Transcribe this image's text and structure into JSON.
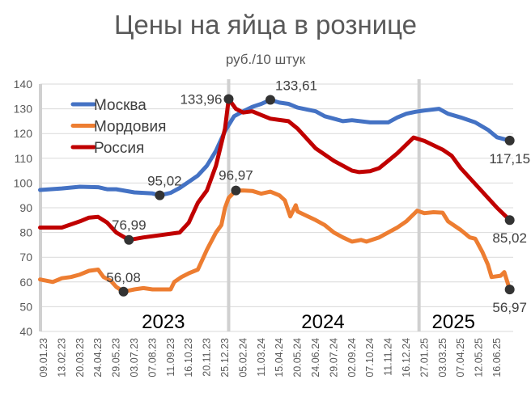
{
  "chart_data": {
    "type": "line",
    "title": "Цены на яйца в рознице",
    "subtitle": "руб./10 штук",
    "xlabel": "",
    "ylabel": "",
    "ylim": [
      40,
      140
    ],
    "yticks": [
      40,
      50,
      60,
      70,
      80,
      90,
      100,
      110,
      120,
      130,
      140
    ],
    "grid": true,
    "legend_position": "top-left",
    "x_tick_labels": [
      "09.01.23",
      "13.02.23",
      "20.03.23",
      "24.04.23",
      "29.05.23",
      "03.07.23",
      "07.08.23",
      "11.09.23",
      "16.10.23",
      "20.11.23",
      "25.12.23",
      "05.02.24",
      "11.03.24",
      "15.04.24",
      "20.05.24",
      "24.06.24",
      "29.07.24",
      "02.09.24",
      "07.10.24",
      "11.11.24",
      "16.12.24",
      "27.01.25",
      "03.03.25",
      "07.04.25",
      "12.05.25",
      "16.06.25"
    ],
    "x_units": "position in tick-label index (fractional)",
    "year_labels": [
      {
        "text": "2023",
        "x": 6.6
      },
      {
        "text": "2024",
        "x": 15.4
      },
      {
        "text": "2025",
        "x": 22.6
      }
    ],
    "year_dividers": [
      10.2,
      20.7
    ],
    "series": [
      {
        "name": "Москва",
        "color": "#4472C4",
        "points": [
          [
            -0.2,
            97.2
          ],
          [
            1,
            97.8
          ],
          [
            2,
            98.5
          ],
          [
            3,
            98.3
          ],
          [
            3.5,
            97.5
          ],
          [
            4,
            97.5
          ],
          [
            5,
            96.2
          ],
          [
            6,
            95.8
          ],
          [
            6.4,
            95.02
          ],
          [
            7,
            96
          ],
          [
            7.5,
            98
          ],
          [
            8,
            100.5
          ],
          [
            8.5,
            103
          ],
          [
            9,
            107
          ],
          [
            9.5,
            113
          ],
          [
            10,
            121
          ],
          [
            10.5,
            127
          ],
          [
            11,
            129
          ],
          [
            11.5,
            130.8
          ],
          [
            12,
            132
          ],
          [
            12.5,
            133.61
          ],
          [
            13,
            132.5
          ],
          [
            13.5,
            132
          ],
          [
            14,
            130.5
          ],
          [
            15,
            129
          ],
          [
            15.5,
            127
          ],
          [
            16,
            126
          ],
          [
            16.5,
            125
          ],
          [
            17,
            125.4
          ],
          [
            18,
            124.5
          ],
          [
            19,
            124.5
          ],
          [
            19.5,
            126.5
          ],
          [
            20,
            128
          ],
          [
            20.5,
            128.8
          ],
          [
            21,
            129.3
          ],
          [
            21.8,
            130
          ],
          [
            22.3,
            128
          ],
          [
            23,
            126.5
          ],
          [
            23.8,
            124.5
          ],
          [
            24.5,
            121.5
          ],
          [
            25,
            118.5
          ],
          [
            25.7,
            117.15
          ]
        ]
      },
      {
        "name": "Мордовия",
        "color": "#ED7D31",
        "points": [
          [
            -0.2,
            61
          ],
          [
            0.5,
            60
          ],
          [
            1,
            61.5
          ],
          [
            1.5,
            62
          ],
          [
            2,
            63
          ],
          [
            2.5,
            64.5
          ],
          [
            3,
            65
          ],
          [
            3.3,
            62
          ],
          [
            3.7,
            60.5
          ],
          [
            4,
            58
          ],
          [
            4.4,
            56.08
          ],
          [
            5,
            57
          ],
          [
            5.5,
            57.5
          ],
          [
            6,
            57
          ],
          [
            7,
            57
          ],
          [
            7.2,
            60
          ],
          [
            7.6,
            62
          ],
          [
            8,
            63.5
          ],
          [
            8.5,
            65
          ],
          [
            9,
            73
          ],
          [
            9.5,
            80
          ],
          [
            9.8,
            83
          ],
          [
            10,
            90
          ],
          [
            10.2,
            94
          ],
          [
            10.6,
            96.97
          ],
          [
            11,
            97
          ],
          [
            11.5,
            96.8
          ],
          [
            12,
            95.7
          ],
          [
            12.5,
            96.5
          ],
          [
            13,
            95
          ],
          [
            13.3,
            93
          ],
          [
            13.6,
            86.5
          ],
          [
            13.9,
            91
          ],
          [
            14,
            88.5
          ],
          [
            15,
            85
          ],
          [
            15.5,
            83
          ],
          [
            16,
            80
          ],
          [
            16.5,
            78
          ],
          [
            17,
            76.3
          ],
          [
            17.5,
            77
          ],
          [
            17.8,
            76.3
          ],
          [
            18.5,
            78
          ],
          [
            19,
            80
          ],
          [
            19.5,
            82
          ],
          [
            20,
            84.5
          ],
          [
            20.6,
            88.8
          ],
          [
            21,
            87.8
          ],
          [
            21.5,
            88.2
          ],
          [
            22,
            88
          ],
          [
            22.3,
            84.5
          ],
          [
            23,
            81
          ],
          [
            23.5,
            78
          ],
          [
            23.8,
            77.5
          ],
          [
            24.2,
            72
          ],
          [
            24.5,
            67
          ],
          [
            24.7,
            62
          ],
          [
            25.2,
            62.5
          ],
          [
            25.4,
            64
          ],
          [
            25.7,
            56.97
          ]
        ]
      },
      {
        "name": "Россия",
        "color": "#C00000",
        "points": [
          [
            -0.2,
            82
          ],
          [
            1,
            82
          ],
          [
            2,
            84.5
          ],
          [
            2.5,
            86
          ],
          [
            3,
            86.3
          ],
          [
            3.5,
            84
          ],
          [
            4,
            80
          ],
          [
            4.7,
            76.99
          ],
          [
            5.5,
            78
          ],
          [
            6.5,
            79
          ],
          [
            7.5,
            80
          ],
          [
            8,
            84
          ],
          [
            8.5,
            92
          ],
          [
            9,
            97
          ],
          [
            9.5,
            107
          ],
          [
            10,
            122
          ],
          [
            10.2,
            133.96
          ],
          [
            10.6,
            130
          ],
          [
            11,
            128.5
          ],
          [
            11.5,
            129
          ],
          [
            12,
            127.5
          ],
          [
            12.5,
            126
          ],
          [
            13,
            125.5
          ],
          [
            13.5,
            125
          ],
          [
            14,
            122
          ],
          [
            15,
            114
          ],
          [
            16,
            109
          ],
          [
            17,
            105
          ],
          [
            17.4,
            104.4
          ],
          [
            18,
            104.8
          ],
          [
            18.5,
            106
          ],
          [
            19,
            109
          ],
          [
            19.5,
            112
          ],
          [
            20.4,
            118.4
          ],
          [
            21,
            117
          ],
          [
            22,
            113.5
          ],
          [
            22.5,
            111
          ],
          [
            23,
            106
          ],
          [
            24,
            98
          ],
          [
            25,
            90
          ],
          [
            25.7,
            85.02
          ]
        ]
      }
    ],
    "annotations": [
      {
        "series": "Москва",
        "x": 6.4,
        "y": 95.02,
        "text": "95,02"
      },
      {
        "series": "Москва",
        "x": 12.5,
        "y": 133.61,
        "text": "133,61"
      },
      {
        "series": "Москва",
        "x": 25.7,
        "y": 117.15,
        "text": "117,15"
      },
      {
        "series": "Мордовия",
        "x": 4.4,
        "y": 56.08,
        "text": "56,08"
      },
      {
        "series": "Мордовия",
        "x": 10.6,
        "y": 96.97,
        "text": "96,97"
      },
      {
        "series": "Мордовия",
        "x": 25.7,
        "y": 56.97,
        "text": "56,97"
      },
      {
        "series": "Россия",
        "x": 4.7,
        "y": 76.99,
        "text": "76,99"
      },
      {
        "series": "Россия",
        "x": 10.2,
        "y": 133.96,
        "text": "133,96"
      },
      {
        "series": "Россия",
        "x": 25.7,
        "y": 85.02,
        "text": "85,02"
      }
    ]
  }
}
